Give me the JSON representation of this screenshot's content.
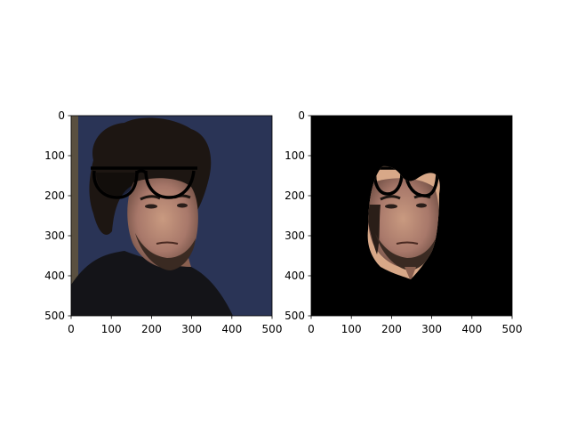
{
  "chart_data": [
    {
      "type": "image",
      "content": "portrait photo of a man with dark curly hair and beard, black shirt, blue background; cartoon black eyeglasses drawn over the eyes",
      "xlim": [
        0,
        500
      ],
      "ylim": [
        500,
        0
      ],
      "xticks": [
        "0",
        "100",
        "200",
        "300",
        "400",
        "500"
      ],
      "yticks": [
        "0",
        "100",
        "200",
        "300",
        "400",
        "500"
      ],
      "grid": false
    },
    {
      "type": "image",
      "content": "segmented face of the same man on a black background with part of the eyeglasses overlay",
      "xlim": [
        0,
        500
      ],
      "ylim": [
        500,
        0
      ],
      "xticks": [
        "0",
        "100",
        "200",
        "300",
        "400",
        "500"
      ],
      "yticks": [
        "0",
        "100",
        "200",
        "300",
        "400",
        "500"
      ],
      "grid": false
    }
  ]
}
